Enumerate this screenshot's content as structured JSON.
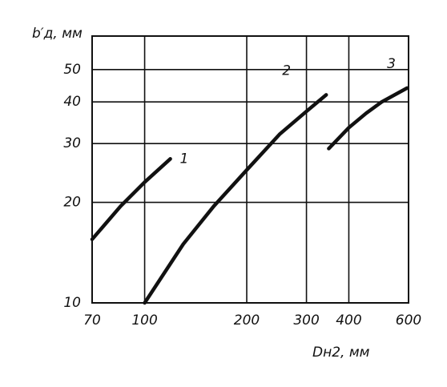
{
  "chart_data": {
    "type": "line",
    "x_label": "Dн2, мм",
    "y_label": "b′д, мм",
    "log_x": true,
    "log_y": true,
    "grid": true,
    "xlim": [
      70,
      600
    ],
    "ylim": [
      10,
      63
    ],
    "xticks": [
      70,
      100,
      200,
      300,
      400,
      600
    ],
    "yticks": [
      10,
      20,
      30,
      40,
      50
    ],
    "series": [
      {
        "name": "1",
        "color": "#111111",
        "x": [
          70,
          85,
          100,
          119
        ],
        "values": [
          15.5,
          19.5,
          23,
          27
        ]
      },
      {
        "name": "2",
        "color": "#111111",
        "x": [
          100,
          130,
          160,
          200,
          250,
          300,
          343
        ],
        "values": [
          10,
          15,
          19.5,
          25,
          32,
          37.5,
          42
        ]
      },
      {
        "name": "3",
        "color": "#111111",
        "x": [
          349,
          400,
          450,
          500,
          594
        ],
        "values": [
          29,
          33.5,
          37,
          40,
          44
        ]
      }
    ]
  }
}
